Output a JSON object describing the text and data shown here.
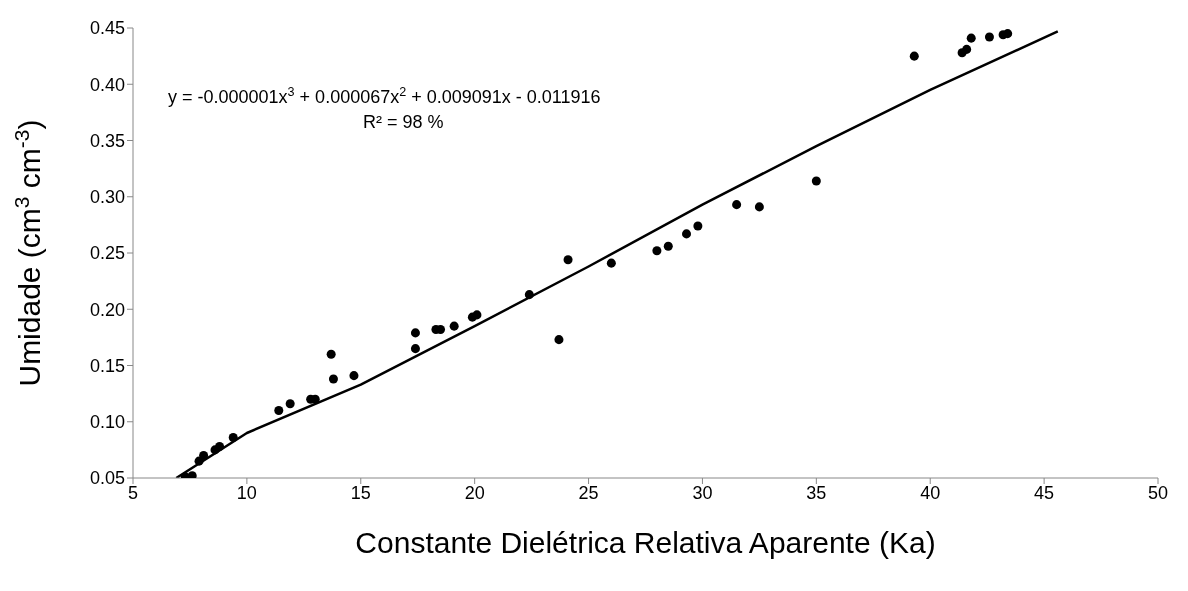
{
  "chart_data": {
    "type": "scatter",
    "xlabel": "Constante Dielétrica Relativa Aparente  (Ka)",
    "ylabel": "Umidade (cm$^{3}$ cm$^{-3}$)",
    "xlim": [
      5,
      50
    ],
    "xticks": [
      5,
      10,
      15,
      20,
      25,
      30,
      35,
      40,
      45,
      50
    ],
    "ylim": [
      0.05,
      0.45
    ],
    "yticks": [
      0.05,
      {
        "value": 0.1,
        "label": "0.10"
      },
      0.15,
      {
        "value": 0.2,
        "label": "0.20"
      },
      0.25,
      {
        "value": 0.3,
        "label": "0.30"
      },
      0.35,
      {
        "value": 0.4,
        "label": "0.40"
      },
      0.45
    ],
    "grid": false,
    "marker": "circle",
    "annotations": [
      "y = -0.000001x$^{3}$ + 0.000067x$^{2}$ + 0.009091x - 0.011916",
      "R² = 98 %"
    ],
    "series": [
      {
        "color": "#000000",
        "x": [
          7.3,
          7.6,
          7.9,
          8.1,
          8.6,
          8.8,
          9.4,
          11.4,
          11.9,
          12.8,
          13.0,
          13.7,
          13.8,
          14.7,
          17.4,
          17.4,
          18.3,
          18.5,
          19.1,
          19.9,
          20.1,
          22.4,
          23.7,
          24.1,
          26.0,
          28.0,
          28.5,
          29.3,
          29.8,
          31.5,
          32.5,
          35.0,
          39.3,
          41.4,
          41.6,
          41.8,
          42.6,
          43.2,
          43.4
        ],
        "values": [
          0.051,
          0.052,
          0.065,
          0.07,
          0.075,
          0.078,
          0.086,
          0.11,
          0.116,
          0.12,
          0.12,
          0.16,
          0.138,
          0.141,
          0.179,
          0.165,
          0.182,
          0.182,
          0.185,
          0.193,
          0.195,
          0.213,
          0.173,
          0.244,
          0.241,
          0.252,
          0.256,
          0.267,
          0.274,
          0.293,
          0.291,
          0.314,
          0.425,
          0.428,
          0.431,
          0.441,
          0.442,
          0.444,
          0.445
        ]
      },
      {
        "type": "line",
        "color": "#000000",
        "marker": "none",
        "line_style": "solid",
        "x": [
          6.9,
          10,
          15,
          20,
          25,
          30,
          35,
          40,
          45.6
        ],
        "values": [
          0.05,
          0.09,
          0.133,
          0.185,
          0.238,
          0.293,
          0.345,
          0.395,
          0.447
        ]
      }
    ]
  }
}
